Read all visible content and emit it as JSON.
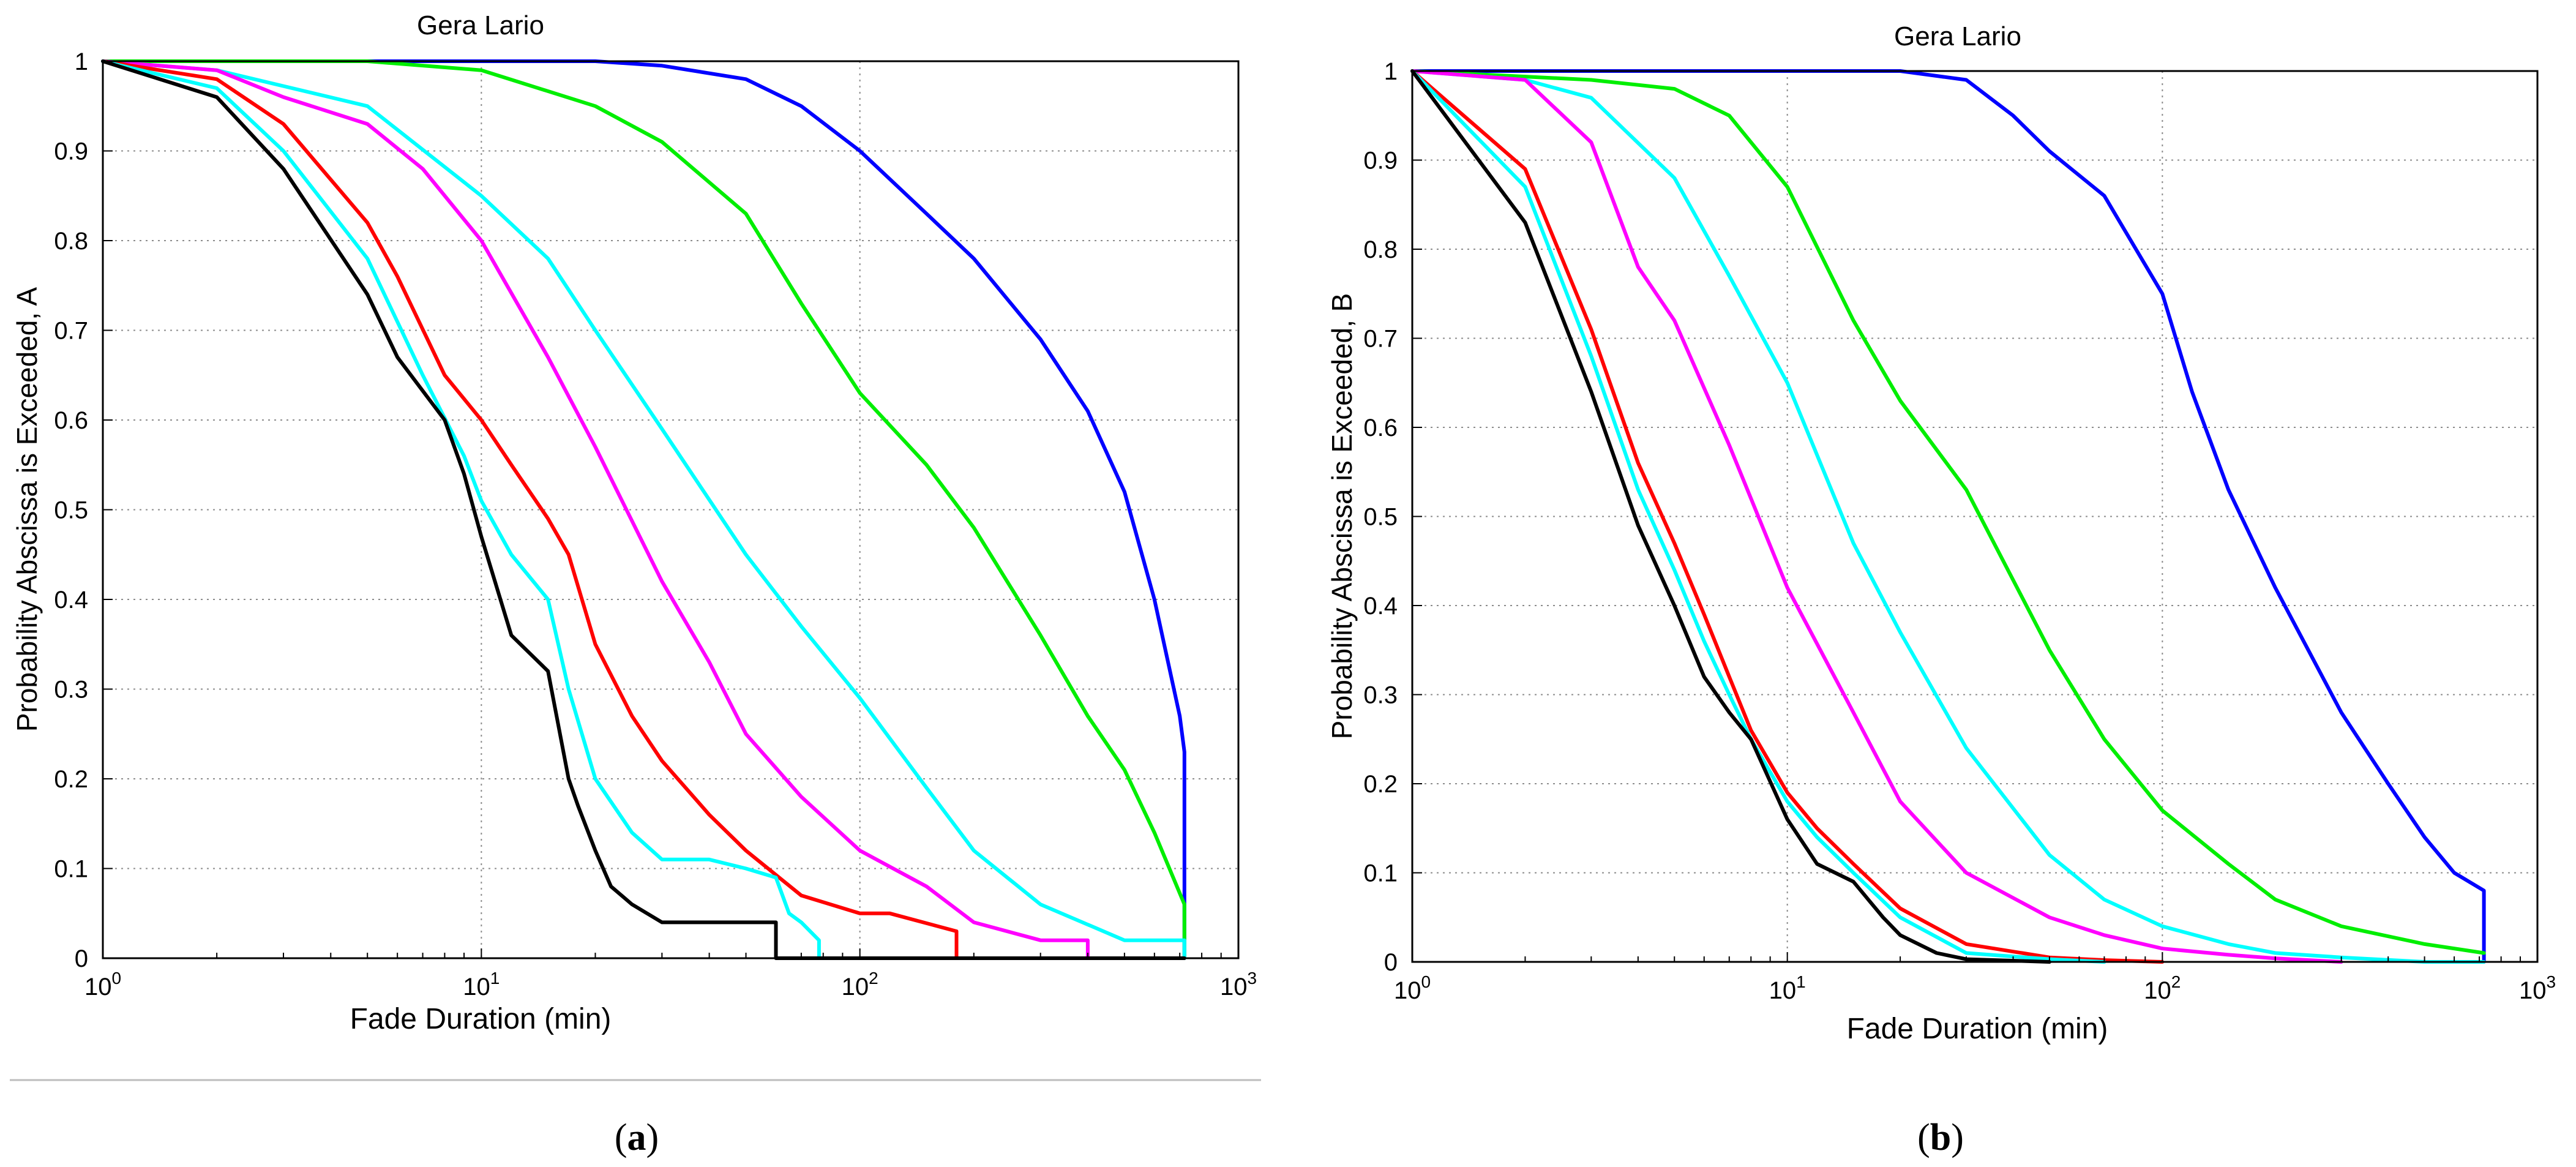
{
  "figure": {
    "captions": [
      "(a)",
      "(b)"
    ],
    "caption_letters": [
      "a",
      "b"
    ]
  },
  "colors": {
    "background": "#ffffff",
    "axes": "#000000",
    "grid": "#8c8c8c",
    "separator": "#bdbdbd",
    "series": [
      "#0000ff",
      "#00ee00",
      "#00ffff",
      "#ff00ff",
      "#ff0000",
      "#00ffff",
      "#000000"
    ]
  },
  "chart_data": [
    {
      "type": "line",
      "title": "Gera Lario",
      "xlabel": "Fade Duration (min)",
      "ylabel": "Probability Abscissa is Exceeded, A",
      "xscale": "log",
      "xlim": [
        1,
        1000
      ],
      "ylim": [
        0,
        1
      ],
      "grid": true,
      "xticks": [
        {
          "base": "10",
          "exp": "0"
        },
        {
          "base": "10",
          "exp": "1"
        },
        {
          "base": "10",
          "exp": "2"
        },
        {
          "base": "10",
          "exp": "3"
        }
      ],
      "yticks": [
        "0",
        "0.1",
        "0.2",
        "0.3",
        "0.4",
        "0.5",
        "0.6",
        "0.7",
        "0.8",
        "0.9",
        "1"
      ],
      "series": [
        {
          "color": "#0000ff",
          "x": [
            1,
            10,
            20,
            30,
            50,
            70,
            100,
            150,
            200,
            300,
            400,
            500,
            600,
            700,
            720,
            720
          ],
          "y": [
            1,
            1,
            1,
            0.995,
            0.98,
            0.95,
            0.9,
            0.83,
            0.78,
            0.69,
            0.61,
            0.52,
            0.4,
            0.27,
            0.23,
            0.0
          ]
        },
        {
          "color": "#00ee00",
          "x": [
            1,
            5,
            10,
            20,
            30,
            50,
            70,
            100,
            150,
            200,
            300,
            400,
            500,
            600,
            720,
            720
          ],
          "y": [
            1,
            1,
            0.99,
            0.95,
            0.91,
            0.83,
            0.73,
            0.63,
            0.55,
            0.48,
            0.36,
            0.27,
            0.21,
            0.14,
            0.06,
            0.0
          ]
        },
        {
          "color": "#00ffff",
          "x": [
            1,
            2,
            5,
            10,
            15,
            20,
            30,
            50,
            70,
            100,
            150,
            200,
            300,
            500,
            720,
            720
          ],
          "y": [
            1,
            0.99,
            0.95,
            0.85,
            0.78,
            0.7,
            0.59,
            0.45,
            0.37,
            0.29,
            0.19,
            0.12,
            0.06,
            0.02,
            0.02,
            0.0
          ]
        },
        {
          "color": "#ff00ff",
          "x": [
            1,
            2,
            3,
            5,
            7,
            10,
            15,
            20,
            30,
            40,
            50,
            70,
            100,
            150,
            200,
            300,
            400,
            400
          ],
          "y": [
            1,
            0.99,
            0.96,
            0.93,
            0.88,
            0.8,
            0.67,
            0.57,
            0.42,
            0.33,
            0.25,
            0.18,
            0.12,
            0.08,
            0.04,
            0.02,
            0.02,
            0.0
          ]
        },
        {
          "color": "#ff0000",
          "x": [
            1,
            2,
            3,
            5,
            6,
            8,
            10,
            12,
            15,
            17,
            20,
            25,
            30,
            40,
            50,
            70,
            100,
            120,
            180,
            180
          ],
          "y": [
            1,
            0.98,
            0.93,
            0.82,
            0.76,
            0.65,
            0.6,
            0.55,
            0.49,
            0.45,
            0.35,
            0.27,
            0.22,
            0.16,
            0.12,
            0.07,
            0.05,
            0.05,
            0.03,
            0.0
          ]
        },
        {
          "color": "#00ffff",
          "x": [
            1,
            2,
            3,
            5,
            7,
            9,
            10,
            12,
            15,
            17,
            20,
            25,
            30,
            40,
            50,
            60,
            65,
            70,
            78,
            78
          ],
          "y": [
            1,
            0.97,
            0.9,
            0.78,
            0.65,
            0.56,
            0.51,
            0.45,
            0.4,
            0.3,
            0.2,
            0.14,
            0.11,
            0.11,
            0.1,
            0.09,
            0.05,
            0.04,
            0.02,
            0.0
          ]
        },
        {
          "color": "#000000",
          "x": [
            1,
            2,
            3,
            5,
            6,
            8,
            9,
            10,
            12,
            15,
            17,
            18,
            20,
            22,
            25,
            30,
            40,
            60,
            60,
            720
          ],
          "y": [
            1,
            0.96,
            0.88,
            0.74,
            0.67,
            0.6,
            0.54,
            0.47,
            0.36,
            0.32,
            0.2,
            0.17,
            0.12,
            0.08,
            0.06,
            0.04,
            0.04,
            0.04,
            0.0,
            0.0
          ]
        }
      ]
    },
    {
      "type": "line",
      "title": "Gera Lario",
      "xlabel": "Fade Duration (min)",
      "ylabel": "Probability Abscissa is Exceeded, B",
      "xscale": "log",
      "xlim": [
        1,
        1000
      ],
      "ylim": [
        0,
        1
      ],
      "grid": true,
      "xticks": [
        {
          "base": "10",
          "exp": "0"
        },
        {
          "base": "10",
          "exp": "1"
        },
        {
          "base": "10",
          "exp": "2"
        },
        {
          "base": "10",
          "exp": "3"
        }
      ],
      "yticks": [
        "0",
        "0.1",
        "0.2",
        "0.3",
        "0.4",
        "0.5",
        "0.6",
        "0.7",
        "0.8",
        "0.9",
        "1"
      ],
      "series": [
        {
          "color": "#0000ff",
          "x": [
            1,
            20,
            30,
            40,
            50,
            70,
            100,
            120,
            150,
            200,
            300,
            400,
            500,
            600,
            720,
            720
          ],
          "y": [
            1,
            1,
            0.99,
            0.95,
            0.91,
            0.86,
            0.75,
            0.64,
            0.53,
            0.42,
            0.28,
            0.2,
            0.14,
            0.1,
            0.08,
            0.0
          ]
        },
        {
          "color": "#00ee00",
          "x": [
            1,
            3,
            5,
            7,
            10,
            15,
            20,
            30,
            50,
            70,
            100,
            150,
            200,
            300,
            500,
            720
          ],
          "y": [
            1,
            0.99,
            0.98,
            0.95,
            0.87,
            0.72,
            0.63,
            0.53,
            0.35,
            0.25,
            0.17,
            0.11,
            0.07,
            0.04,
            0.02,
            0.01
          ]
        },
        {
          "color": "#00ffff",
          "x": [
            1,
            2,
            3,
            5,
            7,
            10,
            15,
            20,
            30,
            50,
            70,
            100,
            150,
            200,
            300,
            500,
            720
          ],
          "y": [
            1,
            0.99,
            0.97,
            0.88,
            0.77,
            0.65,
            0.47,
            0.37,
            0.24,
            0.12,
            0.07,
            0.04,
            0.02,
            0.01,
            0.005,
            0.0,
            0.0
          ]
        },
        {
          "color": "#ff00ff",
          "x": [
            1,
            2,
            3,
            4,
            5,
            7,
            10,
            15,
            20,
            30,
            50,
            70,
            100,
            150,
            200,
            300
          ],
          "y": [
            1,
            0.99,
            0.92,
            0.78,
            0.72,
            0.58,
            0.42,
            0.28,
            0.18,
            0.1,
            0.05,
            0.03,
            0.015,
            0.008,
            0.004,
            0.0
          ]
        },
        {
          "color": "#ff0000",
          "x": [
            1,
            2,
            3,
            4,
            5,
            6,
            7,
            8,
            10,
            12,
            15,
            20,
            30,
            50,
            70,
            100
          ],
          "y": [
            1,
            0.89,
            0.71,
            0.56,
            0.47,
            0.39,
            0.32,
            0.26,
            0.19,
            0.15,
            0.11,
            0.06,
            0.02,
            0.005,
            0.002,
            0.0
          ]
        },
        {
          "color": "#00ffff",
          "x": [
            1,
            2,
            3,
            4,
            5,
            6,
            7,
            8,
            10,
            12,
            15,
            20,
            30,
            50,
            70
          ],
          "y": [
            1,
            0.87,
            0.68,
            0.53,
            0.44,
            0.36,
            0.3,
            0.25,
            0.18,
            0.14,
            0.1,
            0.05,
            0.01,
            0.003,
            0.0
          ]
        },
        {
          "color": "#000000",
          "x": [
            1,
            2,
            3,
            4,
            5,
            6,
            7,
            8,
            10,
            12,
            15,
            18,
            20,
            25,
            30,
            50
          ],
          "y": [
            1,
            0.83,
            0.64,
            0.49,
            0.4,
            0.32,
            0.28,
            0.25,
            0.16,
            0.11,
            0.09,
            0.05,
            0.03,
            0.01,
            0.003,
            0.0
          ]
        }
      ]
    }
  ]
}
